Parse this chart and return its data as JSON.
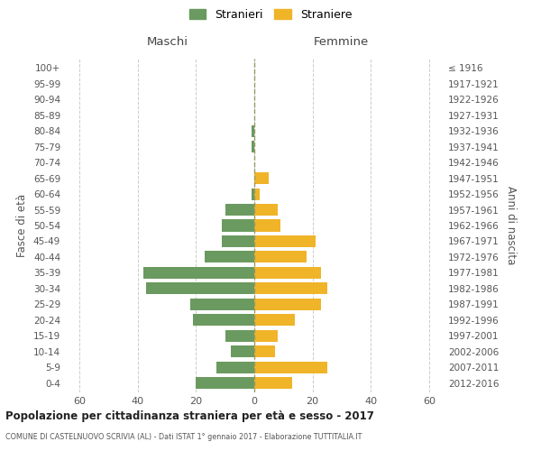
{
  "age_groups": [
    "0-4",
    "5-9",
    "10-14",
    "15-19",
    "20-24",
    "25-29",
    "30-34",
    "35-39",
    "40-44",
    "45-49",
    "50-54",
    "55-59",
    "60-64",
    "65-69",
    "70-74",
    "75-79",
    "80-84",
    "85-89",
    "90-94",
    "95-99",
    "100+"
  ],
  "birth_years": [
    "2012-2016",
    "2007-2011",
    "2002-2006",
    "1997-2001",
    "1992-1996",
    "1987-1991",
    "1982-1986",
    "1977-1981",
    "1972-1976",
    "1967-1971",
    "1962-1966",
    "1957-1961",
    "1952-1956",
    "1947-1951",
    "1942-1946",
    "1937-1941",
    "1932-1936",
    "1927-1931",
    "1922-1926",
    "1917-1921",
    "≤ 1916"
  ],
  "maschi": [
    -20,
    -13,
    -8,
    -10,
    -21,
    -22,
    -37,
    -38,
    -17,
    -11,
    -11,
    -10,
    -1,
    0,
    0,
    -1,
    -1,
    0,
    0,
    0,
    0
  ],
  "femmine": [
    13,
    25,
    7,
    8,
    14,
    23,
    25,
    23,
    18,
    21,
    9,
    8,
    2,
    5,
    0,
    0,
    0,
    0,
    0,
    0,
    0
  ],
  "male_color": "#6a9a5f",
  "female_color": "#f0b429",
  "grid_color": "#cccccc",
  "background_color": "#ffffff",
  "bar_height": 0.75,
  "xlim": [
    -65,
    65
  ],
  "xticks": [
    -60,
    -40,
    -20,
    0,
    20,
    40,
    60
  ],
  "xtick_labels": [
    "60",
    "40",
    "20",
    "0",
    "20",
    "40",
    "60"
  ],
  "title_main": "Popolazione per cittadinanza straniera per età e sesso - 2017",
  "title_sub": "COMUNE DI CASTELNUOVO SCRIVIA (AL) - Dati ISTAT 1° gennaio 2017 - Elaborazione TUTTITALIA.IT",
  "ylabel_left": "Fasce di età",
  "ylabel_right": "Anni di nascita",
  "label_maschi": "Maschi",
  "label_femmine": "Femmine",
  "legend_stranieri": "Stranieri",
  "legend_straniere": "Straniere"
}
